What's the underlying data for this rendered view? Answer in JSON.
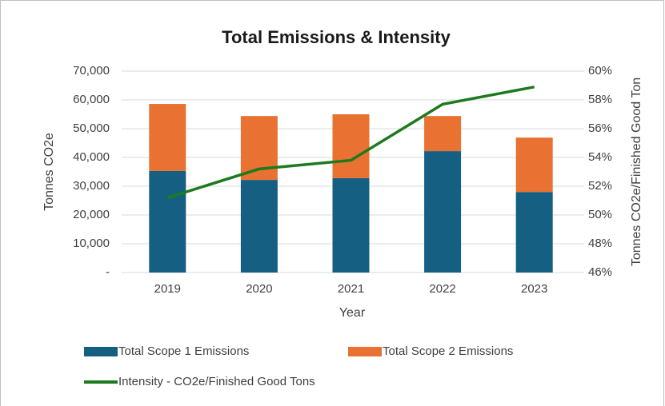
{
  "chart_data": {
    "type": "bar",
    "title": "Total Emissions & Intensity",
    "x_label": "Year",
    "y_label": "Tonnes CO2e",
    "y2_label": "Tonnes CO2e/Finished Good Ton",
    "categories": [
      "2019",
      "2020",
      "2021",
      "2022",
      "2023"
    ],
    "stacked": true,
    "series": [
      {
        "name": "Total Scope 1 Emissions",
        "color": "#156082",
        "values": [
          35300,
          32200,
          32800,
          42200,
          28000
        ]
      },
      {
        "name": "Total Scope 2 Emissions",
        "color": "#e97132",
        "values": [
          23300,
          22200,
          22200,
          12200,
          18900
        ]
      },
      {
        "name": "Intensity - CO2e/Finished Good Tons",
        "color": "#1e7a1e",
        "type": "line",
        "axis": "y2",
        "values": [
          51.2,
          53.2,
          53.8,
          57.7,
          58.9
        ]
      }
    ],
    "ylim": [
      0,
      70000
    ],
    "yticks": [
      {
        "value": 0,
        "label": "-"
      },
      {
        "value": 10000,
        "label": "10,000"
      },
      {
        "value": 20000,
        "label": "20,000"
      },
      {
        "value": 30000,
        "label": "30,000"
      },
      {
        "value": 40000,
        "label": "40,000"
      },
      {
        "value": 50000,
        "label": "50,000"
      },
      {
        "value": 60000,
        "label": "60,000"
      },
      {
        "value": 70000,
        "label": "70,000"
      }
    ],
    "y2lim": [
      46,
      60
    ],
    "y2ticks": [
      {
        "value": 46,
        "label": "46%"
      },
      {
        "value": 48,
        "label": "48%"
      },
      {
        "value": 50,
        "label": "50%"
      },
      {
        "value": 52,
        "label": "52%"
      },
      {
        "value": 54,
        "label": "54%"
      },
      {
        "value": 56,
        "label": "56%"
      },
      {
        "value": 58,
        "label": "58%"
      },
      {
        "value": 60,
        "label": "60%"
      }
    ]
  }
}
